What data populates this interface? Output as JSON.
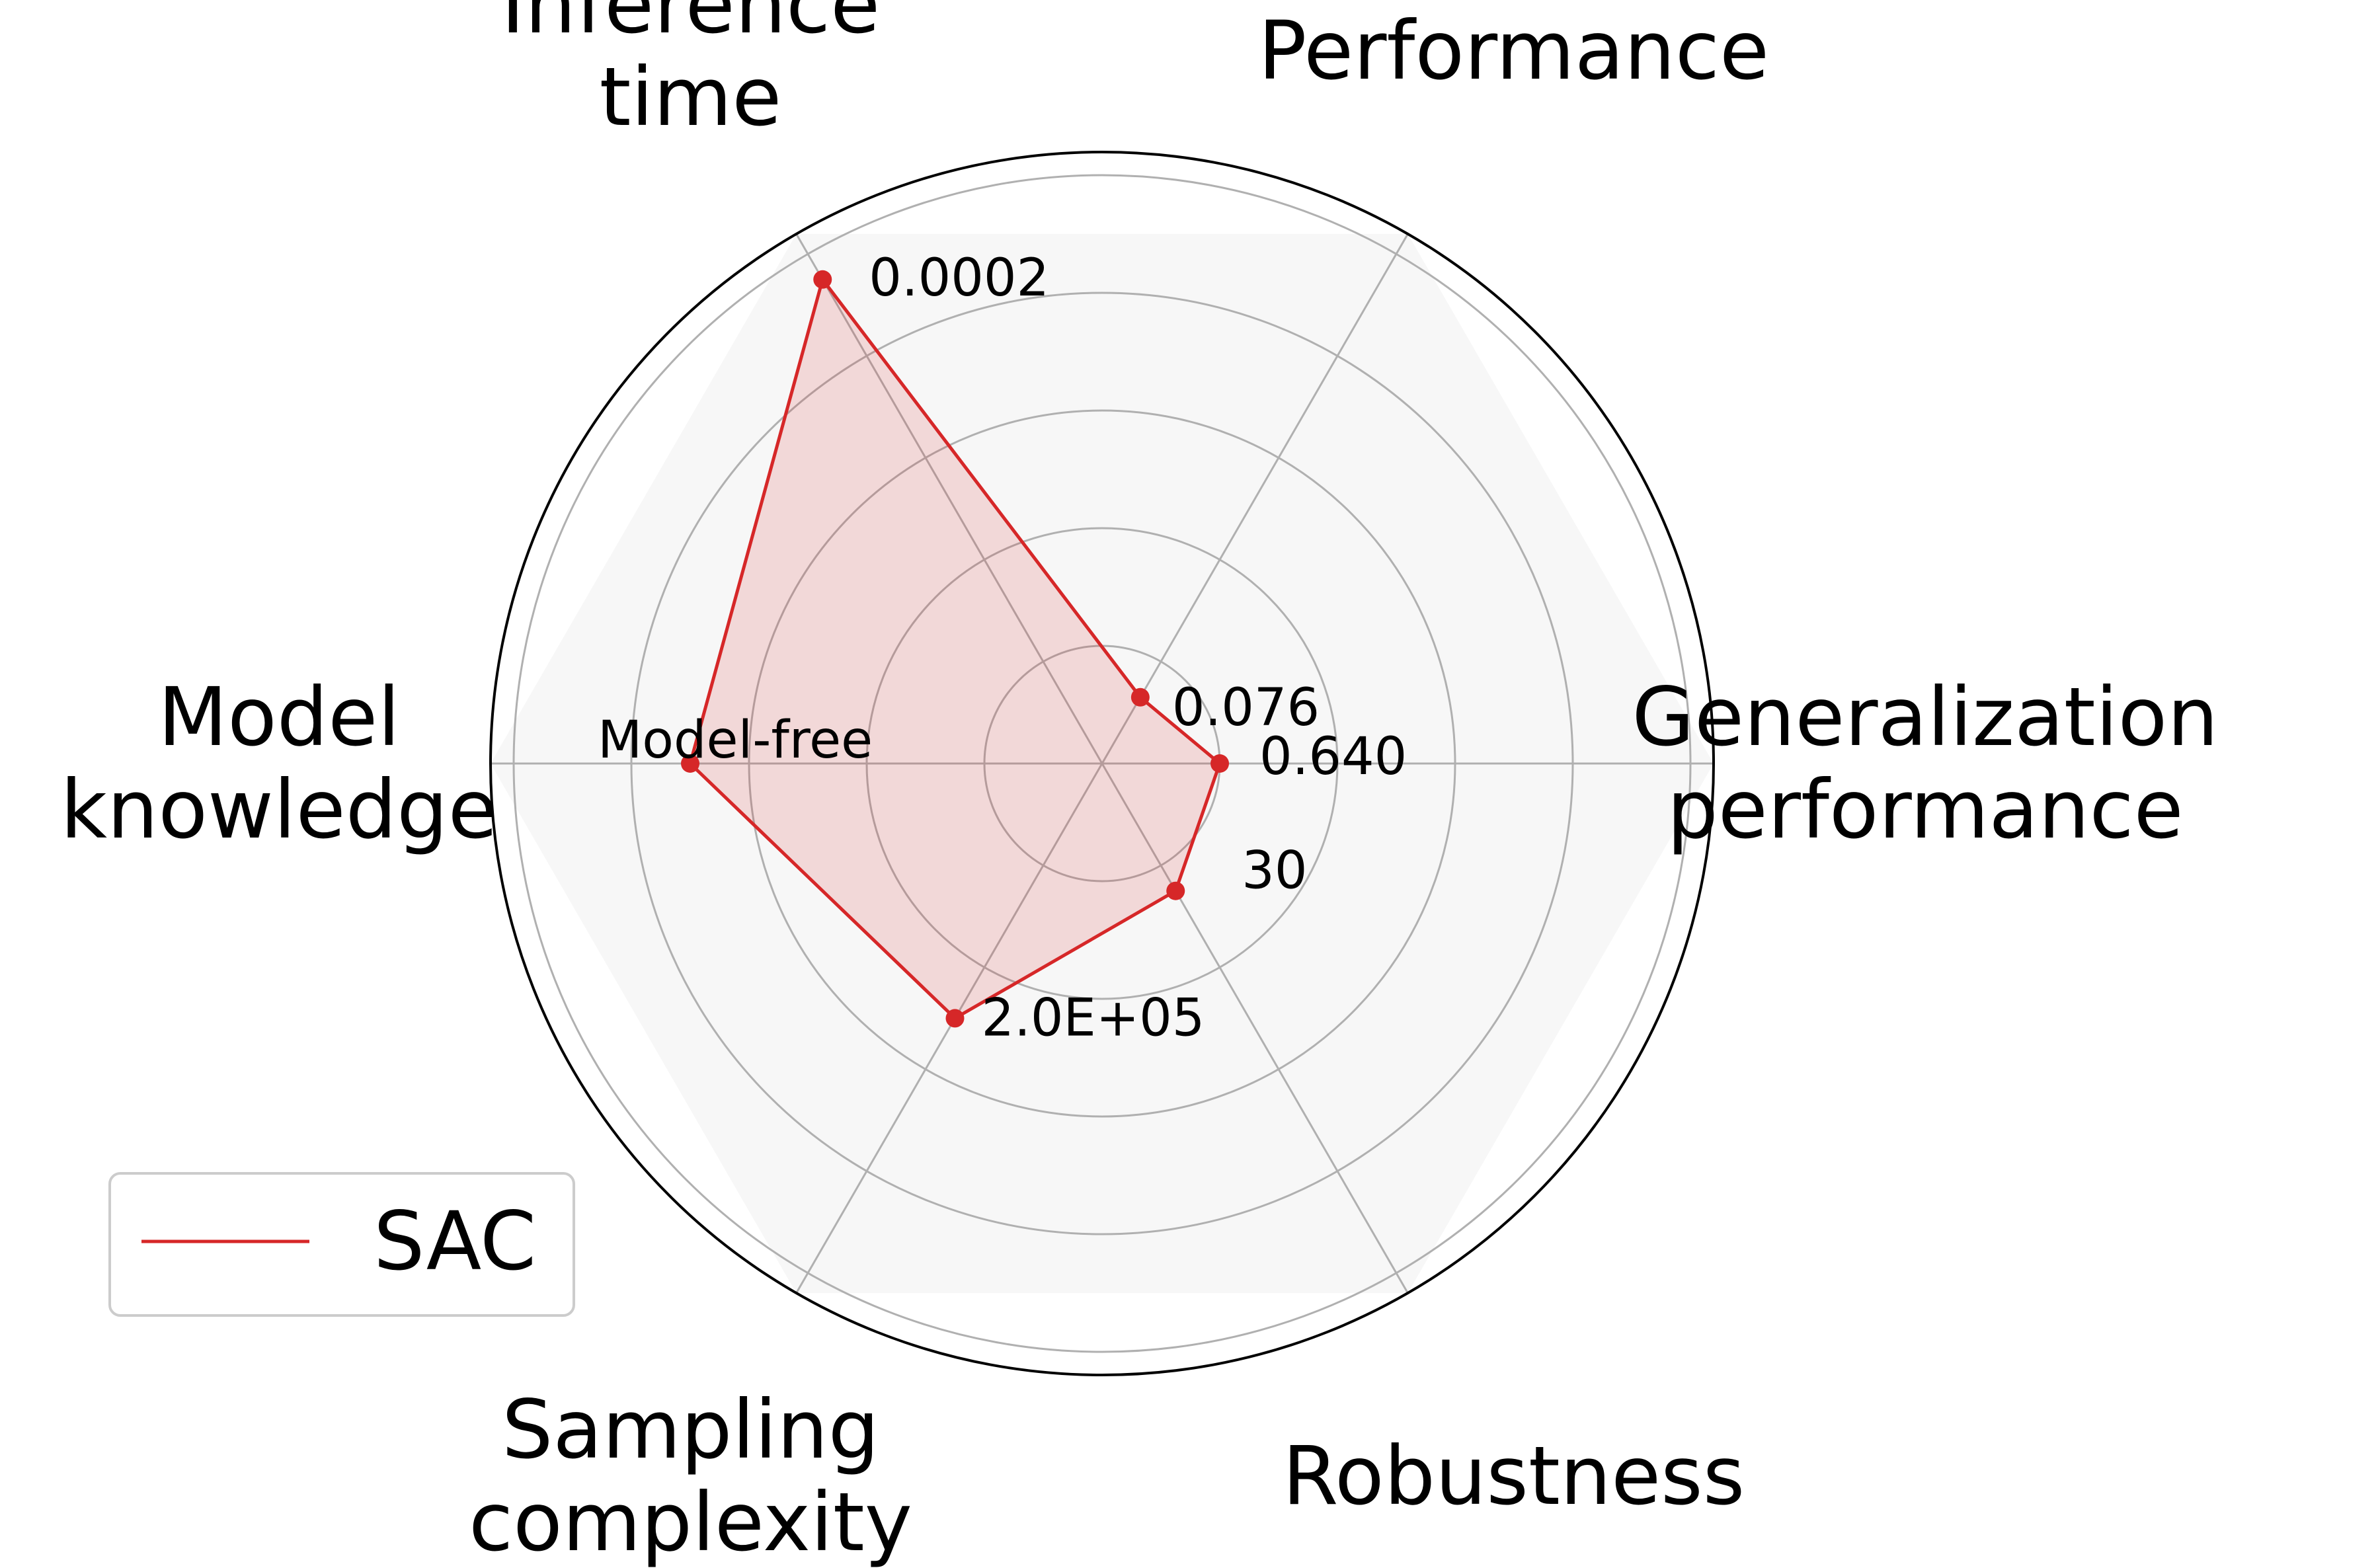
{
  "chart_data": {
    "type": "radar",
    "title": "",
    "axes": [
      "Performance",
      "Inference time",
      "Model knowledge",
      "Sampling complexity",
      "Robustness",
      "Generalization performance"
    ],
    "axis_label_lines": [
      [
        "Performance"
      ],
      [
        "Inference",
        "time"
      ],
      [
        "Model",
        "knowledge"
      ],
      [
        "Sampling",
        "complexity"
      ],
      [
        "Robustness"
      ],
      [
        "Generalization",
        "performance"
      ]
    ],
    "radial_range": [
      0,
      1
    ],
    "radial_gridlines": [
      0.2,
      0.4,
      0.6,
      0.8,
      1.0
    ],
    "grid": true,
    "series": [
      {
        "name": "SAC",
        "color": "#d62728",
        "fill_color": "#d62728",
        "fill_opacity": 0.15,
        "values": [
          0.13,
          0.95,
          0.7,
          0.5,
          0.25,
          0.2
        ],
        "value_labels": [
          "0.076",
          "0.0002",
          "Model-free",
          "2.0E+05",
          "30",
          "0.640"
        ]
      }
    ],
    "legend": {
      "position": "lower-left",
      "entries": [
        "SAC"
      ]
    }
  }
}
